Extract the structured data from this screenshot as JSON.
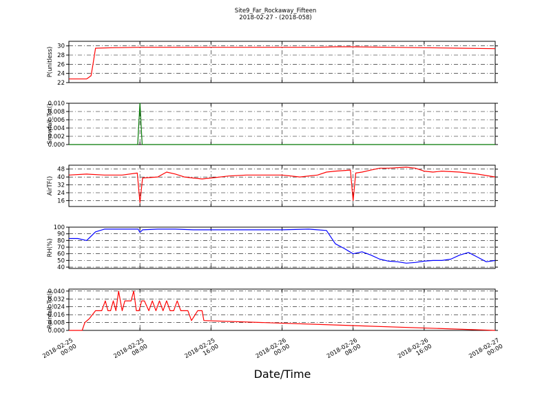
{
  "title_line1": "Site9_Far_Rockaway_Fifteen",
  "title_line2": "2018-02-27 - (2018-058)",
  "xlabel": "Date/Time",
  "x_ticks": [
    {
      "line1": "2018-02-25",
      "line2": "00:00"
    },
    {
      "line1": "2018-02-25",
      "line2": "08:00"
    },
    {
      "line1": "2018-02-25",
      "line2": "16:00"
    },
    {
      "line1": "2018-02-26",
      "line2": "00:00"
    },
    {
      "line1": "2018-02-26",
      "line2": "08:00"
    },
    {
      "line1": "2018-02-26",
      "line2": "16:00"
    },
    {
      "line1": "2018-02-27",
      "line2": "00:00"
    }
  ],
  "chart_data": [
    {
      "type": "line",
      "ylabel": "P(unitless)",
      "ylim": [
        22,
        31
      ],
      "yticks": [
        "22",
        "24",
        "26",
        "28",
        "30"
      ],
      "grid": true,
      "color": "#ff0000",
      "x_hours": [
        0,
        2,
        2.5,
        2.7,
        3,
        5,
        8,
        12,
        16,
        20,
        24,
        28,
        30,
        32,
        36,
        40,
        44,
        48
      ],
      "values": [
        22.8,
        22.8,
        23.5,
        25.8,
        29.5,
        29.6,
        29.7,
        29.7,
        29.7,
        29.7,
        29.7,
        29.7,
        29.8,
        29.8,
        29.7,
        29.6,
        29.5,
        29.4
      ]
    },
    {
      "type": "line",
      "ylabel": "Snowfall_Tot()",
      "ylim": [
        0,
        0.01
      ],
      "yticks": [
        "0.000",
        "0.002",
        "0.004",
        "0.006",
        "0.008",
        "0.010"
      ],
      "grid": true,
      "color": "#007700",
      "x_hours": [
        0,
        7.75,
        8,
        8.25,
        48
      ],
      "values": [
        0,
        0,
        0.01,
        0,
        0
      ]
    },
    {
      "type": "line",
      "ylabel": "AirTF()",
      "ylim": [
        10,
        52
      ],
      "yticks": [
        "16",
        "24",
        "32",
        "40",
        "48"
      ],
      "grid": true,
      "color": "#ff0000",
      "x_hours": [
        0,
        2,
        4,
        6,
        7.7,
        8,
        8.3,
        10,
        11,
        12,
        13,
        14,
        15,
        16,
        18,
        20,
        22,
        24,
        26,
        28,
        29,
        30,
        31.7,
        32,
        32.3,
        33,
        34,
        35,
        36,
        38,
        39,
        40,
        41,
        42,
        44,
        46,
        48
      ],
      "values": [
        42,
        43,
        42,
        42,
        44,
        14,
        39,
        40,
        45,
        43,
        40,
        39,
        38,
        39,
        41,
        42,
        42,
        42,
        40,
        42,
        45,
        46,
        47,
        16,
        44,
        45,
        47,
        49,
        49,
        50,
        49,
        46,
        45,
        46,
        45,
        43,
        40
      ]
    },
    {
      "type": "line",
      "ylabel": "RH(%)",
      "ylim": [
        38,
        100
      ],
      "yticks": [
        "40",
        "50",
        "60",
        "70",
        "80",
        "90",
        "100"
      ],
      "grid": true,
      "color": "#0000ff",
      "x_hours": [
        0,
        1,
        2,
        3,
        4,
        6,
        7.8,
        8,
        8.3,
        10,
        12,
        14,
        16,
        20,
        24,
        27,
        28,
        29,
        30,
        31,
        32,
        33,
        34,
        35,
        36,
        37,
        38,
        39,
        40,
        41,
        42,
        43,
        44,
        45,
        46,
        47,
        48
      ],
      "values": [
        83,
        83,
        80,
        93,
        97,
        97,
        97,
        92,
        96,
        97,
        97,
        96,
        96,
        96,
        96,
        97,
        96,
        95,
        75,
        68,
        60,
        63,
        58,
        52,
        49,
        48,
        46,
        47,
        49,
        50,
        50,
        52,
        58,
        62,
        55,
        48,
        50
      ]
    },
    {
      "type": "line",
      "ylabel": "Rainfall_Tot()",
      "ylim": [
        0,
        0.042
      ],
      "yticks": [
        "0.000",
        "0.008",
        "0.016",
        "0.024",
        "0.032",
        "0.040"
      ],
      "grid": true,
      "color": "#ff0000",
      "x_hours": [
        0,
        1.5,
        1.8,
        2.3,
        3,
        3.4,
        3.7,
        4.1,
        4.4,
        4.7,
        5,
        5.3,
        5.6,
        6,
        6.3,
        6.6,
        7,
        7.3,
        7.6,
        7.9,
        8.2,
        8.5,
        9,
        9.4,
        9.8,
        10.2,
        10.6,
        11,
        11.4,
        11.8,
        12.2,
        12.6,
        13,
        13.4,
        13.8,
        14.5,
        15,
        15.2,
        48
      ],
      "values": [
        0,
        0,
        0.008,
        0.012,
        0.02,
        0.02,
        0.02,
        0.03,
        0.02,
        0.02,
        0.03,
        0.02,
        0.04,
        0.02,
        0.03,
        0.03,
        0.03,
        0.04,
        0.02,
        0.02,
        0.03,
        0.03,
        0.02,
        0.03,
        0.02,
        0.03,
        0.02,
        0.03,
        0.02,
        0.02,
        0.03,
        0.02,
        0.02,
        0.02,
        0.01,
        0.02,
        0.02,
        0.01,
        0
      ]
    }
  ]
}
